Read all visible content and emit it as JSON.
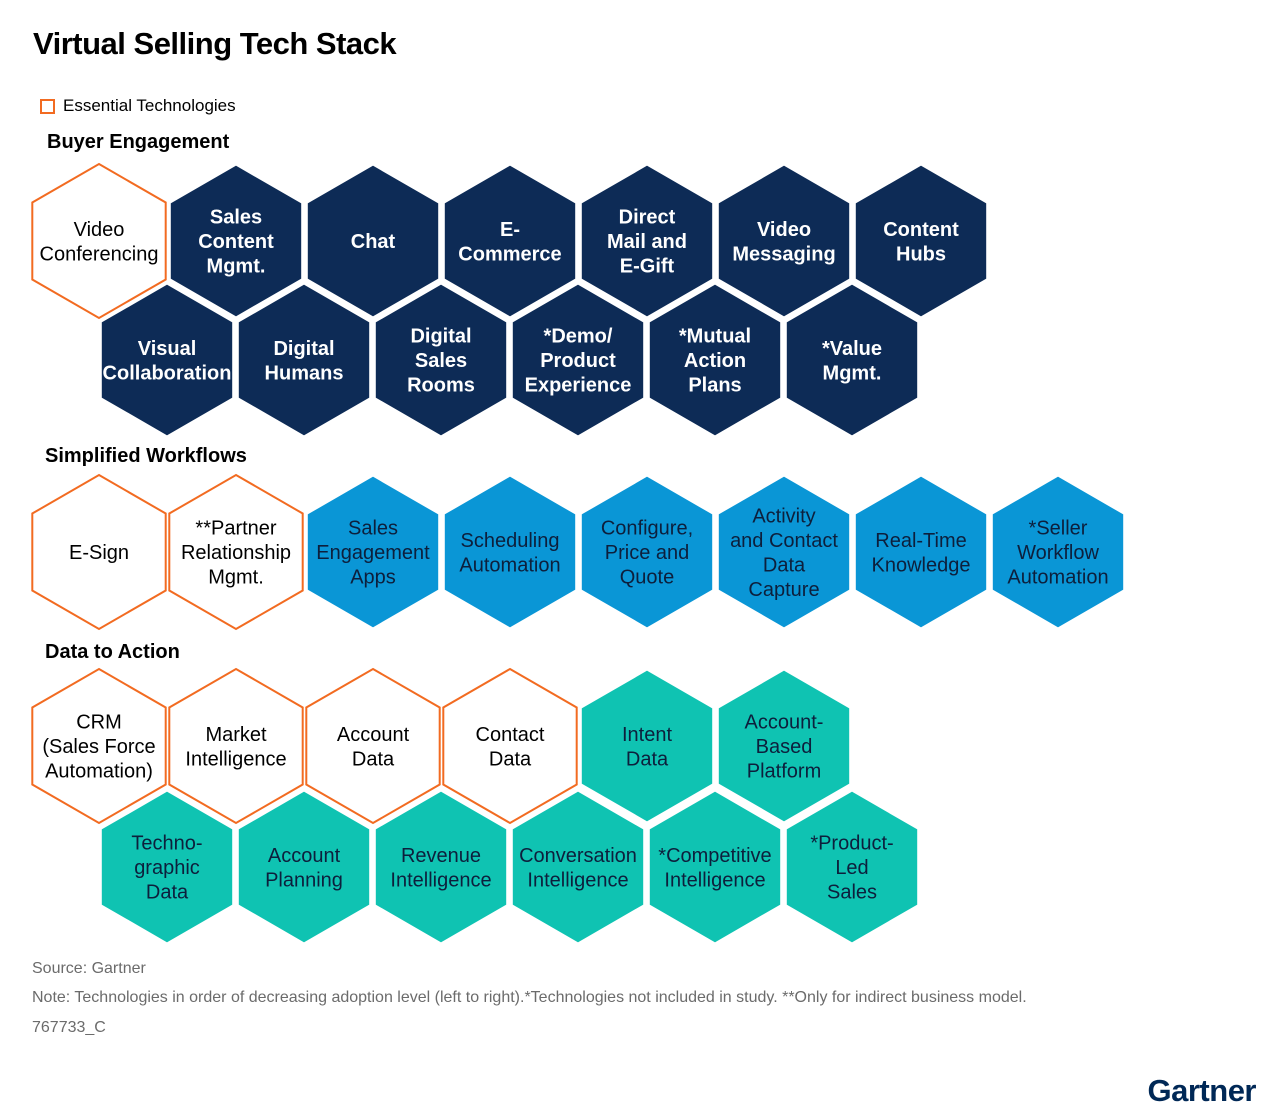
{
  "title": "Virtual Selling Tech Stack",
  "legend": {
    "label": "Essential Technologies",
    "color": "#f26b21"
  },
  "colors": {
    "buyer": "#0d2b56",
    "workflow": "#0a96d6",
    "data": "#0fc3b2",
    "essential_border": "#f26b21"
  },
  "sections": [
    {
      "title": "Buyer Engagement",
      "color_key": "buyer",
      "rows": [
        [
          {
            "label": "Video\nConferencing",
            "essential": true
          },
          {
            "label": "Sales\nContent\nMgmt.",
            "essential": false
          },
          {
            "label": "Chat",
            "essential": false
          },
          {
            "label": "E-\nCommerce",
            "essential": false
          },
          {
            "label": "Direct\nMail and\nE-Gift",
            "essential": false
          },
          {
            "label": "Video\nMessaging",
            "essential": false
          },
          {
            "label": "Content\nHubs",
            "essential": false
          }
        ],
        [
          {
            "label": "Visual\nCollaboration",
            "essential": false
          },
          {
            "label": "Digital\nHumans",
            "essential": false
          },
          {
            "label": "Digital\nSales\nRooms",
            "essential": false
          },
          {
            "label": "*Demo/\nProduct\nExperience",
            "essential": false
          },
          {
            "label": "*Mutual\nAction\nPlans",
            "essential": false
          },
          {
            "label": "*Value\nMgmt.",
            "essential": false
          }
        ]
      ]
    },
    {
      "title": "Simplified Workflows",
      "color_key": "workflow",
      "rows": [
        [
          {
            "label": "E-Sign",
            "essential": true
          },
          {
            "label": "**Partner\nRelationship\nMgmt.",
            "essential": true
          },
          {
            "label": "Sales\nEngagement\nApps",
            "essential": false
          },
          {
            "label": "Scheduling\nAutomation",
            "essential": false
          },
          {
            "label": "Configure,\nPrice and\nQuote",
            "essential": false
          },
          {
            "label": "Activity\nand Contact\nData\nCapture",
            "essential": false
          },
          {
            "label": "Real-Time\nKnowledge",
            "essential": false
          },
          {
            "label": "*Seller\nWorkflow\nAutomation",
            "essential": false
          }
        ]
      ]
    },
    {
      "title": "Data to Action",
      "color_key": "data",
      "rows": [
        [
          {
            "label": "CRM\n(Sales Force\nAutomation)",
            "essential": true
          },
          {
            "label": "Market\nIntelligence",
            "essential": true
          },
          {
            "label": "Account\nData",
            "essential": true
          },
          {
            "label": "Contact\nData",
            "essential": true
          },
          {
            "label": "Intent\nData",
            "essential": false
          },
          {
            "label": "Account-\nBased\nPlatform",
            "essential": false
          }
        ],
        [
          {
            "label": "Techno-\ngraphic\nData",
            "essential": false
          },
          {
            "label": "Account\nPlanning",
            "essential": false
          },
          {
            "label": "Revenue\nIntelligence",
            "essential": false
          },
          {
            "label": "Conversation\nIntelligence",
            "essential": false
          },
          {
            "label": "*Competitive\nIntelligence",
            "essential": false
          },
          {
            "label": "*Product-\nLed\nSales",
            "essential": false
          }
        ]
      ]
    }
  ],
  "footer": {
    "source": "Source: Gartner",
    "note": "Note: Technologies in order of decreasing adoption level (left to right).*Technologies not included in study. **Only for indirect business model.",
    "id": "767733_C"
  },
  "brand": "Gartner"
}
